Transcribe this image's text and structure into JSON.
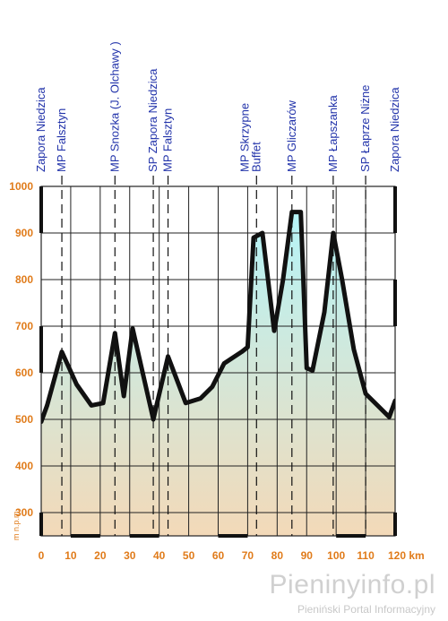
{
  "chart_data": {
    "type": "area",
    "x": [
      0,
      2,
      7,
      12,
      17,
      21,
      25,
      28,
      31,
      38,
      43,
      49,
      54,
      58,
      62,
      68,
      70,
      72,
      75,
      79,
      82,
      85,
      88,
      90,
      92,
      96,
      99,
      102,
      106,
      110,
      114,
      118,
      120
    ],
    "y": [
      495,
      530,
      645,
      575,
      530,
      535,
      685,
      550,
      695,
      500,
      635,
      535,
      545,
      570,
      620,
      645,
      655,
      890,
      900,
      690,
      800,
      945,
      945,
      610,
      605,
      730,
      900,
      800,
      650,
      555,
      530,
      505,
      540
    ],
    "xlim": [
      0,
      120
    ],
    "ylim": [
      250,
      1000
    ],
    "x_ticks": [
      0,
      10,
      20,
      30,
      40,
      50,
      60,
      70,
      80,
      90,
      100,
      110,
      120
    ],
    "y_ticks": [
      300,
      400,
      500,
      600,
      700,
      800,
      900,
      1000
    ],
    "x_tick_labels": [
      "0",
      "10",
      "20",
      "30",
      "40",
      "50",
      "60",
      "70",
      "80",
      "90",
      "100",
      "110",
      "120 km"
    ],
    "y_tick_labels": [
      "300",
      "400",
      "500",
      "600",
      "700",
      "800",
      "900",
      "1000"
    ],
    "ylabel": "m n.p.m.",
    "locations": [
      {
        "lines": [
          "Zapora Niedzica"
        ],
        "x": 0
      },
      {
        "lines": [
          "MP Falsztyn"
        ],
        "x": 7
      },
      {
        "lines": [
          "MP Snozka (J. Olchawy )"
        ],
        "x": 25
      },
      {
        "lines": [
          "SP Zapora Niedzica"
        ],
        "x": 38
      },
      {
        "lines": [
          "MP Falsztyn"
        ],
        "x": 43
      },
      {
        "lines": [
          "MP Skrzypne",
          "Buffet"
        ],
        "x": 73
      },
      {
        "lines": [
          "MP Gliczarów"
        ],
        "x": 85
      },
      {
        "lines": [
          "MP Łapszanka"
        ],
        "x": 99
      },
      {
        "lines": [
          "SP Łaprze Niżne"
        ],
        "x": 110
      },
      {
        "lines": [
          "Zapora Niedzica"
        ],
        "x": 120
      }
    ],
    "colors": {
      "axis_text": "#e07b1a",
      "location_text": "#2233aa",
      "profile_line": "#111111",
      "fill_top": "#b5f4f8",
      "fill_bottom": "#f3d9b8"
    }
  },
  "watermark": {
    "title": "Pieninyinfo.pl",
    "subtitle": "Pieniński Portal Informacyjny"
  }
}
